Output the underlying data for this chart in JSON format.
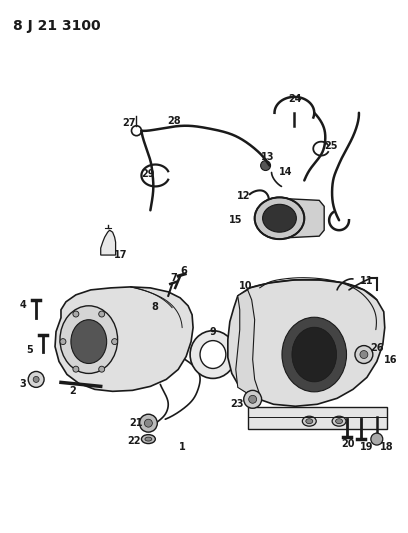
{
  "title": "8 J 21 3100",
  "bg_color": "#ffffff",
  "line_color": "#1a1a1a",
  "fig_w": 4.08,
  "fig_h": 5.33,
  "dpi": 100
}
